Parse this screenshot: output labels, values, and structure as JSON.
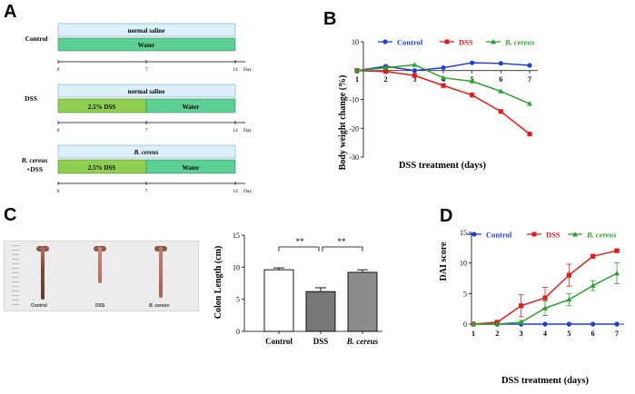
{
  "panels": {
    "a": "A",
    "b": "B",
    "c": "C",
    "d": "D"
  },
  "colors": {
    "control": "#1f3fd6",
    "dss": "#e21b1b",
    "bcereus": "#2ca02c",
    "light_blue": "#dcf0fb",
    "light_green": "#8fce50",
    "teal": "#5ccf94"
  },
  "schema": {
    "axis_ticks": [
      "0",
      "7",
      "14"
    ],
    "axis_unit": "Day",
    "groups": [
      {
        "label": "Control",
        "label2": "",
        "top_bar": "normal saline",
        "bottom_segments": [
          "Water"
        ]
      },
      {
        "label": "DSS",
        "label2": "",
        "top_bar": "normal saline",
        "bottom_segments": [
          "2.5% DSS",
          "Water"
        ]
      },
      {
        "label": "B. cereus",
        "label2": "+DSS",
        "top_bar": "B. cereus",
        "bottom_segments": [
          "2.5% DSS",
          "Water"
        ]
      }
    ]
  },
  "photo": {
    "labels": [
      "Control",
      "DSS",
      "B. cereus"
    ]
  },
  "chart_data": [
    {
      "panel": "B",
      "type": "line",
      "xlabel": "DSS treatment (days)",
      "ylabel": "Body weight change (%)",
      "x": [
        1,
        2,
        3,
        4,
        5,
        6,
        7
      ],
      "xticks": [
        "1",
        "2",
        "3",
        "4",
        "5",
        "6",
        "7"
      ],
      "ylim": [
        -30,
        10
      ],
      "yticks": [
        10,
        0,
        -10,
        -20,
        -30
      ],
      "series": [
        {
          "name": "Control",
          "values": [
            0,
            1.5,
            0,
            1,
            2.7,
            2.5,
            1.8
          ]
        },
        {
          "name": "DSS",
          "values": [
            0,
            -0.3,
            -1.7,
            -5.2,
            -8.5,
            -14.2,
            -22
          ]
        },
        {
          "name": "B. cereus",
          "values": [
            0,
            1,
            2,
            -2.5,
            -3.7,
            -7.2,
            -11.5
          ]
        }
      ]
    },
    {
      "panel": "C",
      "type": "bar",
      "ylabel": "Colon Length (cm)",
      "categories": [
        "Control",
        "DSS",
        "B. cereus"
      ],
      "values": [
        9.6,
        6.2,
        9.2
      ],
      "errors": [
        0.3,
        0.6,
        0.4
      ],
      "ylim": [
        0,
        15
      ],
      "yticks": [
        0,
        5,
        10,
        15
      ],
      "annotations": [
        "**",
        "**"
      ]
    },
    {
      "panel": "D",
      "type": "line",
      "xlabel": "DSS treatment (days)",
      "ylabel": "DAI score",
      "x": [
        1,
        2,
        3,
        4,
        5,
        6,
        7
      ],
      "xticks": [
        "1",
        "2",
        "3",
        "4",
        "5",
        "6",
        "7"
      ],
      "ylim": [
        0,
        15
      ],
      "yticks": [
        0,
        5,
        10,
        15
      ],
      "series": [
        {
          "name": "Control",
          "values": [
            0,
            0,
            0,
            0,
            0,
            0,
            0
          ],
          "errors": [
            0,
            0,
            0,
            0,
            0,
            0,
            0
          ]
        },
        {
          "name": "DSS",
          "values": [
            0,
            0.3,
            3,
            4.3,
            8,
            11.1,
            12
          ],
          "errors": [
            0,
            0.2,
            1.8,
            1.7,
            1.8,
            0.3,
            0.2
          ]
        },
        {
          "name": "B. cereus",
          "values": [
            0,
            0,
            0.3,
            2.6,
            4,
            6.3,
            8.3
          ],
          "errors": [
            0,
            0,
            0.3,
            1.2,
            1,
            0.8,
            1.7
          ]
        }
      ]
    }
  ]
}
